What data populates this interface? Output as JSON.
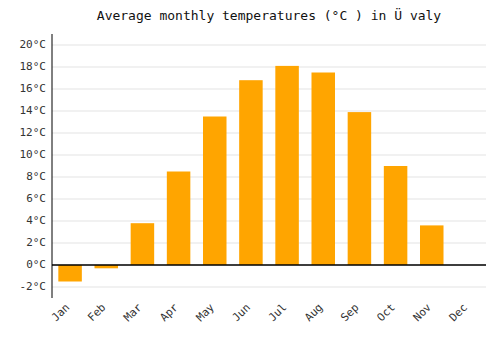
{
  "chart_data": {
    "type": "bar",
    "title": "Average monthly temperatures (°C ) in Ü valy",
    "categories": [
      "Jan",
      "Feb",
      "Mar",
      "Apr",
      "May",
      "Jun",
      "Jul",
      "Aug",
      "Sep",
      "Oct",
      "Nov",
      "Dec"
    ],
    "values": [
      -1.5,
      -0.3,
      3.8,
      8.5,
      13.5,
      16.8,
      18.1,
      17.5,
      13.9,
      9.0,
      3.6,
      0.0
    ],
    "color": "#FFA500",
    "ylim": [
      -3,
      21
    ],
    "yticks": [
      {
        "value": -2,
        "label": "-2°C"
      },
      {
        "value": 0,
        "label": "0°C"
      },
      {
        "value": 2,
        "label": "2°C"
      },
      {
        "value": 4,
        "label": "4°C"
      },
      {
        "value": 6,
        "label": "6°C"
      },
      {
        "value": 8,
        "label": "8°C"
      },
      {
        "value": 10,
        "label": "10°C"
      },
      {
        "value": 12,
        "label": "12°C"
      },
      {
        "value": 14,
        "label": "14°C"
      },
      {
        "value": 16,
        "label": "16°C"
      },
      {
        "value": 18,
        "label": "18°C"
      },
      {
        "value": 20,
        "label": "20°C"
      }
    ],
    "grid": true
  }
}
